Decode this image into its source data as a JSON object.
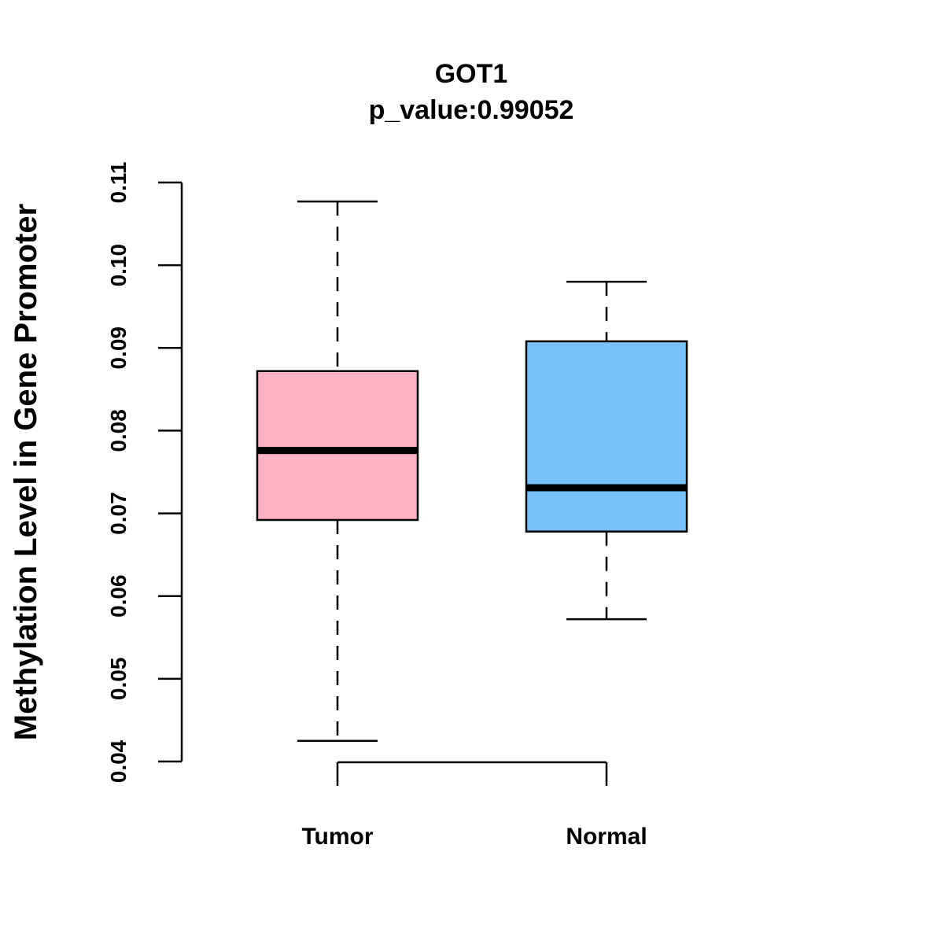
{
  "chart_data": {
    "type": "box",
    "title": "GOT1",
    "subtitle": "p_value:0.99052",
    "xlabel": "",
    "ylabel": "Methylation Level in Gene Promoter",
    "ylim": [
      0.04,
      0.11
    ],
    "yticks": [
      "0.04",
      "0.05",
      "0.06",
      "0.07",
      "0.08",
      "0.09",
      "0.10",
      "0.11"
    ],
    "categories": [
      "Tumor",
      "Normal"
    ],
    "boxes": [
      {
        "category": "Tumor",
        "whisker_low": 0.0425,
        "q1": 0.0692,
        "median": 0.0776,
        "q3": 0.0872,
        "whisker_high": 0.1077,
        "color": "#FDB1C3"
      },
      {
        "category": "Normal",
        "whisker_low": 0.0572,
        "q1": 0.0678,
        "median": 0.0731,
        "q3": 0.0908,
        "whisker_high": 0.098,
        "color": "#78C1F8"
      }
    ],
    "grid": false,
    "legend": "none"
  }
}
